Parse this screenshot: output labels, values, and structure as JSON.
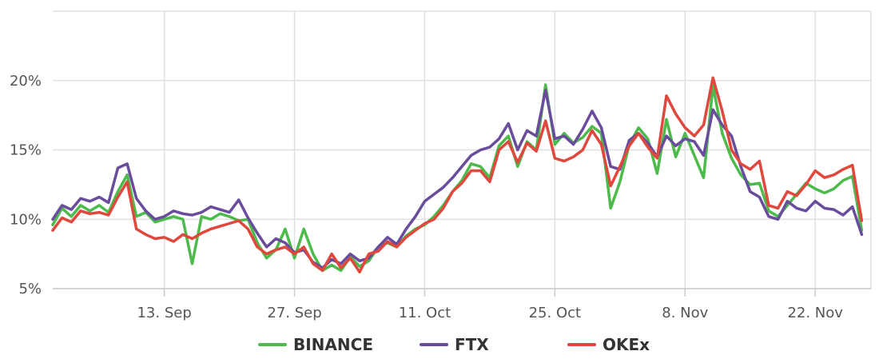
{
  "chart_data": {
    "type": "line",
    "title": "",
    "xlabel": "",
    "ylabel": "",
    "x_start": "2021-09-01",
    "x_end": "2021-11-28",
    "ylim": [
      5,
      25
    ],
    "y_ticks": [
      "5%",
      "10%",
      "15%",
      "20%"
    ],
    "y_tick_values": [
      5,
      10,
      15,
      20
    ],
    "x_ticks": [
      "13. Sep",
      "27. Sep",
      "11. Oct",
      "25. Oct",
      "8. Nov",
      "22. Nov"
    ],
    "x_tick_dates": [
      "2021-09-13",
      "2021-09-27",
      "2021-10-11",
      "2021-10-25",
      "2021-11-08",
      "2021-11-22"
    ],
    "grid": true,
    "legend_position": "bottom",
    "series": [
      {
        "name": "BINANCE",
        "color": "#4cbb4c",
        "points": [
          [
            "2021-09-01",
            9.6
          ],
          [
            "2021-09-02",
            10.8
          ],
          [
            "2021-09-03",
            10.2
          ],
          [
            "2021-09-04",
            11.0
          ],
          [
            "2021-09-05",
            10.6
          ],
          [
            "2021-09-06",
            11.0
          ],
          [
            "2021-09-07",
            10.5
          ],
          [
            "2021-09-08",
            12.0
          ],
          [
            "2021-09-09",
            13.2
          ],
          [
            "2021-09-10",
            10.2
          ],
          [
            "2021-09-11",
            10.5
          ],
          [
            "2021-09-12",
            9.8
          ],
          [
            "2021-09-13",
            10.0
          ],
          [
            "2021-09-14",
            10.2
          ],
          [
            "2021-09-15",
            10.0
          ],
          [
            "2021-09-16",
            6.8
          ],
          [
            "2021-09-17",
            10.2
          ],
          [
            "2021-09-18",
            10.0
          ],
          [
            "2021-09-19",
            10.4
          ],
          [
            "2021-09-20",
            10.2
          ],
          [
            "2021-09-21",
            9.9
          ],
          [
            "2021-09-22",
            10.0
          ],
          [
            "2021-09-23",
            8.3
          ],
          [
            "2021-09-24",
            7.2
          ],
          [
            "2021-09-25",
            7.8
          ],
          [
            "2021-09-26",
            9.3
          ],
          [
            "2021-09-27",
            7.2
          ],
          [
            "2021-09-28",
            9.3
          ],
          [
            "2021-09-29",
            7.5
          ],
          [
            "2021-09-30",
            6.3
          ],
          [
            "2021-10-01",
            6.7
          ],
          [
            "2021-10-02",
            6.3
          ],
          [
            "2021-10-03",
            7.3
          ],
          [
            "2021-10-04",
            6.6
          ],
          [
            "2021-10-05",
            7.0
          ],
          [
            "2021-10-06",
            8.0
          ],
          [
            "2021-10-07",
            8.3
          ],
          [
            "2021-10-08",
            8.0
          ],
          [
            "2021-10-09",
            8.8
          ],
          [
            "2021-10-10",
            9.3
          ],
          [
            "2021-10-11",
            9.6
          ],
          [
            "2021-10-12",
            10.2
          ],
          [
            "2021-10-13",
            11.0
          ],
          [
            "2021-10-14",
            12.0
          ],
          [
            "2021-10-15",
            12.8
          ],
          [
            "2021-10-16",
            14.0
          ],
          [
            "2021-10-17",
            13.8
          ],
          [
            "2021-10-18",
            13.0
          ],
          [
            "2021-10-19",
            15.3
          ],
          [
            "2021-10-20",
            16.0
          ],
          [
            "2021-10-21",
            13.8
          ],
          [
            "2021-10-22",
            15.6
          ],
          [
            "2021-10-23",
            15.0
          ],
          [
            "2021-10-24",
            19.7
          ],
          [
            "2021-10-25",
            15.4
          ],
          [
            "2021-10-26",
            16.2
          ],
          [
            "2021-10-27",
            15.5
          ],
          [
            "2021-10-28",
            15.9
          ],
          [
            "2021-10-29",
            16.7
          ],
          [
            "2021-10-30",
            16.2
          ],
          [
            "2021-10-31",
            10.8
          ],
          [
            "2021-11-01",
            12.7
          ],
          [
            "2021-11-02",
            15.4
          ],
          [
            "2021-11-03",
            16.6
          ],
          [
            "2021-11-04",
            15.8
          ],
          [
            "2021-11-05",
            13.3
          ],
          [
            "2021-11-06",
            17.2
          ],
          [
            "2021-11-07",
            14.5
          ],
          [
            "2021-11-08",
            16.2
          ],
          [
            "2021-11-09",
            14.6
          ],
          [
            "2021-11-10",
            13.0
          ],
          [
            "2021-11-11",
            19.6
          ],
          [
            "2021-11-12",
            16.2
          ],
          [
            "2021-11-13",
            14.4
          ],
          [
            "2021-11-14",
            13.2
          ],
          [
            "2021-11-15",
            12.5
          ],
          [
            "2021-11-16",
            12.6
          ],
          [
            "2021-11-17",
            10.6
          ],
          [
            "2021-11-18",
            10.2
          ],
          [
            "2021-11-19",
            11.0
          ],
          [
            "2021-11-20",
            11.8
          ],
          [
            "2021-11-21",
            12.6
          ],
          [
            "2021-11-22",
            12.2
          ],
          [
            "2021-11-23",
            11.9
          ],
          [
            "2021-11-24",
            12.2
          ],
          [
            "2021-11-25",
            12.8
          ],
          [
            "2021-11-26",
            13.1
          ],
          [
            "2021-11-27",
            9.2
          ]
        ]
      },
      {
        "name": "FTX",
        "color": "#6a4c9c",
        "points": [
          [
            "2021-09-01",
            10.0
          ],
          [
            "2021-09-02",
            11.0
          ],
          [
            "2021-09-03",
            10.7
          ],
          [
            "2021-09-04",
            11.5
          ],
          [
            "2021-09-05",
            11.3
          ],
          [
            "2021-09-06",
            11.6
          ],
          [
            "2021-09-07",
            11.2
          ],
          [
            "2021-09-08",
            13.7
          ],
          [
            "2021-09-09",
            14.0
          ],
          [
            "2021-09-10",
            11.5
          ],
          [
            "2021-09-11",
            10.6
          ],
          [
            "2021-09-12",
            10.0
          ],
          [
            "2021-09-13",
            10.2
          ],
          [
            "2021-09-14",
            10.6
          ],
          [
            "2021-09-15",
            10.4
          ],
          [
            "2021-09-16",
            10.3
          ],
          [
            "2021-09-17",
            10.5
          ],
          [
            "2021-09-18",
            10.9
          ],
          [
            "2021-09-19",
            10.7
          ],
          [
            "2021-09-20",
            10.5
          ],
          [
            "2021-09-21",
            11.4
          ],
          [
            "2021-09-22",
            10.1
          ],
          [
            "2021-09-23",
            9.0
          ],
          [
            "2021-09-24",
            8.0
          ],
          [
            "2021-09-25",
            8.6
          ],
          [
            "2021-09-26",
            8.3
          ],
          [
            "2021-09-27",
            7.6
          ],
          [
            "2021-09-28",
            7.8
          ],
          [
            "2021-09-29",
            6.9
          ],
          [
            "2021-09-30",
            6.5
          ],
          [
            "2021-10-01",
            7.1
          ],
          [
            "2021-10-02",
            6.8
          ],
          [
            "2021-10-03",
            7.5
          ],
          [
            "2021-10-04",
            7.0
          ],
          [
            "2021-10-05",
            7.2
          ],
          [
            "2021-10-06",
            8.0
          ],
          [
            "2021-10-07",
            8.7
          ],
          [
            "2021-10-08",
            8.2
          ],
          [
            "2021-10-09",
            9.3
          ],
          [
            "2021-10-10",
            10.2
          ],
          [
            "2021-10-11",
            11.3
          ],
          [
            "2021-10-12",
            11.8
          ],
          [
            "2021-10-13",
            12.3
          ],
          [
            "2021-10-14",
            13.0
          ],
          [
            "2021-10-15",
            13.8
          ],
          [
            "2021-10-16",
            14.6
          ],
          [
            "2021-10-17",
            15.0
          ],
          [
            "2021-10-18",
            15.2
          ],
          [
            "2021-10-19",
            15.8
          ],
          [
            "2021-10-20",
            16.9
          ],
          [
            "2021-10-21",
            15.0
          ],
          [
            "2021-10-22",
            16.4
          ],
          [
            "2021-10-23",
            16.0
          ],
          [
            "2021-10-24",
            19.3
          ],
          [
            "2021-10-25",
            15.8
          ],
          [
            "2021-10-26",
            16.0
          ],
          [
            "2021-10-27",
            15.4
          ],
          [
            "2021-10-28",
            16.5
          ],
          [
            "2021-10-29",
            17.8
          ],
          [
            "2021-10-30",
            16.6
          ],
          [
            "2021-10-31",
            13.8
          ],
          [
            "2021-11-01",
            13.6
          ],
          [
            "2021-11-02",
            15.7
          ],
          [
            "2021-11-03",
            16.2
          ],
          [
            "2021-11-04",
            15.5
          ],
          [
            "2021-11-05",
            14.5
          ],
          [
            "2021-11-06",
            16.0
          ],
          [
            "2021-11-07",
            15.3
          ],
          [
            "2021-11-08",
            15.8
          ],
          [
            "2021-11-09",
            15.6
          ],
          [
            "2021-11-10",
            14.6
          ],
          [
            "2021-11-11",
            17.9
          ],
          [
            "2021-11-12",
            16.8
          ],
          [
            "2021-11-13",
            16.0
          ],
          [
            "2021-11-14",
            13.8
          ],
          [
            "2021-11-15",
            12.0
          ],
          [
            "2021-11-16",
            11.6
          ],
          [
            "2021-11-17",
            10.2
          ],
          [
            "2021-11-18",
            10.0
          ],
          [
            "2021-11-19",
            11.3
          ],
          [
            "2021-11-20",
            10.8
          ],
          [
            "2021-11-21",
            10.6
          ],
          [
            "2021-11-22",
            11.3
          ],
          [
            "2021-11-23",
            10.8
          ],
          [
            "2021-11-24",
            10.7
          ],
          [
            "2021-11-25",
            10.3
          ],
          [
            "2021-11-26",
            10.9
          ],
          [
            "2021-11-27",
            8.9
          ]
        ]
      },
      {
        "name": "OKEx",
        "color": "#e0473d",
        "points": [
          [
            "2021-09-01",
            9.2
          ],
          [
            "2021-09-02",
            10.1
          ],
          [
            "2021-09-03",
            9.8
          ],
          [
            "2021-09-04",
            10.6
          ],
          [
            "2021-09-05",
            10.4
          ],
          [
            "2021-09-06",
            10.5
          ],
          [
            "2021-09-07",
            10.3
          ],
          [
            "2021-09-08",
            11.6
          ],
          [
            "2021-09-09",
            12.7
          ],
          [
            "2021-09-10",
            9.3
          ],
          [
            "2021-09-11",
            8.9
          ],
          [
            "2021-09-12",
            8.6
          ],
          [
            "2021-09-13",
            8.7
          ],
          [
            "2021-09-14",
            8.4
          ],
          [
            "2021-09-15",
            8.9
          ],
          [
            "2021-09-16",
            8.6
          ],
          [
            "2021-09-17",
            9.0
          ],
          [
            "2021-09-18",
            9.3
          ],
          [
            "2021-09-19",
            9.5
          ],
          [
            "2021-09-20",
            9.7
          ],
          [
            "2021-09-21",
            9.9
          ],
          [
            "2021-09-22",
            9.3
          ],
          [
            "2021-09-23",
            8.0
          ],
          [
            "2021-09-24",
            7.5
          ],
          [
            "2021-09-25",
            7.8
          ],
          [
            "2021-09-26",
            8.0
          ],
          [
            "2021-09-27",
            7.5
          ],
          [
            "2021-09-28",
            8.0
          ],
          [
            "2021-09-29",
            6.8
          ],
          [
            "2021-09-30",
            6.3
          ],
          [
            "2021-10-01",
            7.5
          ],
          [
            "2021-10-02",
            6.5
          ],
          [
            "2021-10-03",
            7.2
          ],
          [
            "2021-10-04",
            6.2
          ],
          [
            "2021-10-05",
            7.5
          ],
          [
            "2021-10-06",
            7.7
          ],
          [
            "2021-10-07",
            8.4
          ],
          [
            "2021-10-08",
            8.0
          ],
          [
            "2021-10-09",
            8.7
          ],
          [
            "2021-10-10",
            9.2
          ],
          [
            "2021-10-11",
            9.7
          ],
          [
            "2021-10-12",
            10.0
          ],
          [
            "2021-10-13",
            10.8
          ],
          [
            "2021-10-14",
            12.0
          ],
          [
            "2021-10-15",
            12.6
          ],
          [
            "2021-10-16",
            13.5
          ],
          [
            "2021-10-17",
            13.5
          ],
          [
            "2021-10-18",
            12.7
          ],
          [
            "2021-10-19",
            15.0
          ],
          [
            "2021-10-20",
            15.6
          ],
          [
            "2021-10-21",
            14.1
          ],
          [
            "2021-10-22",
            15.5
          ],
          [
            "2021-10-23",
            14.9
          ],
          [
            "2021-10-24",
            17.1
          ],
          [
            "2021-10-25",
            14.4
          ],
          [
            "2021-10-26",
            14.2
          ],
          [
            "2021-10-27",
            14.5
          ],
          [
            "2021-10-28",
            15.0
          ],
          [
            "2021-10-29",
            16.4
          ],
          [
            "2021-10-30",
            15.4
          ],
          [
            "2021-10-31",
            12.4
          ],
          [
            "2021-11-01",
            13.8
          ],
          [
            "2021-11-02",
            15.3
          ],
          [
            "2021-11-03",
            16.2
          ],
          [
            "2021-11-04",
            15.2
          ],
          [
            "2021-11-05",
            14.4
          ],
          [
            "2021-11-06",
            18.9
          ],
          [
            "2021-11-07",
            17.6
          ],
          [
            "2021-11-08",
            16.6
          ],
          [
            "2021-11-09",
            16.0
          ],
          [
            "2021-11-10",
            16.8
          ],
          [
            "2021-11-11",
            20.2
          ],
          [
            "2021-11-12",
            17.8
          ],
          [
            "2021-11-13",
            15.0
          ],
          [
            "2021-11-14",
            14.0
          ],
          [
            "2021-11-15",
            13.6
          ],
          [
            "2021-11-16",
            14.2
          ],
          [
            "2021-11-17",
            11.0
          ],
          [
            "2021-11-18",
            10.8
          ],
          [
            "2021-11-19",
            12.0
          ],
          [
            "2021-11-20",
            11.7
          ],
          [
            "2021-11-21",
            12.5
          ],
          [
            "2021-11-22",
            13.5
          ],
          [
            "2021-11-23",
            13.0
          ],
          [
            "2021-11-24",
            13.2
          ],
          [
            "2021-11-25",
            13.6
          ],
          [
            "2021-11-26",
            13.9
          ],
          [
            "2021-11-27",
            9.9
          ]
        ]
      }
    ]
  }
}
